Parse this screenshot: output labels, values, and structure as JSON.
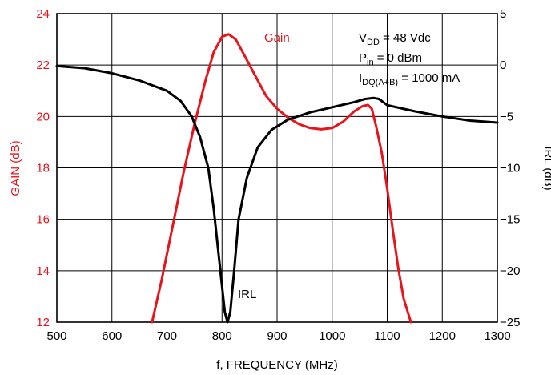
{
  "chart_data": {
    "type": "line",
    "title": "",
    "xlabel": "f, FREQUENCY (MHz)",
    "ylabel_left": "GAIN (dB)",
    "ylabel_right": "IRL (dB)",
    "xlim": [
      500,
      1300
    ],
    "ylim_left": [
      12,
      24
    ],
    "ylim_right": [
      -25,
      5
    ],
    "x_ticks": [
      500,
      600,
      700,
      800,
      900,
      1000,
      1100,
      1200,
      1300
    ],
    "y_ticks_left": [
      12,
      14,
      16,
      18,
      20,
      22,
      24
    ],
    "y_ticks_right": [
      -25,
      -20,
      -15,
      -10,
      -5,
      0,
      5
    ],
    "grid": true,
    "colors": {
      "gain": "#e8141c",
      "irl": "#000000",
      "grid": "#000000"
    },
    "series": [
      {
        "name": "Gain",
        "axis": "left",
        "color": "#e8141c",
        "points": [
          [
            673,
            12.0
          ],
          [
            690,
            13.6
          ],
          [
            710,
            15.7
          ],
          [
            730,
            17.8
          ],
          [
            750,
            19.7
          ],
          [
            770,
            21.4
          ],
          [
            785,
            22.5
          ],
          [
            800,
            23.1
          ],
          [
            812,
            23.2
          ],
          [
            825,
            23.0
          ],
          [
            840,
            22.4
          ],
          [
            860,
            21.6
          ],
          [
            880,
            20.8
          ],
          [
            900,
            20.3
          ],
          [
            920,
            19.95
          ],
          [
            940,
            19.7
          ],
          [
            960,
            19.55
          ],
          [
            980,
            19.5
          ],
          [
            1000,
            19.55
          ],
          [
            1020,
            19.8
          ],
          [
            1040,
            20.2
          ],
          [
            1055,
            20.4
          ],
          [
            1065,
            20.45
          ],
          [
            1072,
            20.3
          ],
          [
            1080,
            19.6
          ],
          [
            1090,
            18.6
          ],
          [
            1100,
            17.2
          ],
          [
            1110,
            15.6
          ],
          [
            1120,
            14.1
          ],
          [
            1130,
            12.9
          ],
          [
            1143,
            12.0
          ]
        ]
      },
      {
        "name": "IRL",
        "axis": "right",
        "color": "#000000",
        "points": [
          [
            500,
            -0.1
          ],
          [
            550,
            -0.3
          ],
          [
            600,
            -0.8
          ],
          [
            650,
            -1.5
          ],
          [
            700,
            -2.5
          ],
          [
            725,
            -3.5
          ],
          [
            745,
            -5.0
          ],
          [
            760,
            -7.0
          ],
          [
            775,
            -10.0
          ],
          [
            785,
            -14.0
          ],
          [
            795,
            -19.0
          ],
          [
            805,
            -24.0
          ],
          [
            810,
            -25.0
          ],
          [
            815,
            -24.0
          ],
          [
            822,
            -20.0
          ],
          [
            830,
            -15.0
          ],
          [
            845,
            -11.0
          ],
          [
            865,
            -8.0
          ],
          [
            890,
            -6.3
          ],
          [
            920,
            -5.3
          ],
          [
            960,
            -4.6
          ],
          [
            1000,
            -4.1
          ],
          [
            1040,
            -3.6
          ],
          [
            1060,
            -3.3
          ],
          [
            1075,
            -3.2
          ],
          [
            1085,
            -3.3
          ],
          [
            1100,
            -3.9
          ],
          [
            1150,
            -4.5
          ],
          [
            1200,
            -5.0
          ],
          [
            1250,
            -5.4
          ],
          [
            1300,
            -5.6
          ]
        ]
      }
    ],
    "labels": {
      "gain_label": "Gain",
      "irl_label": "IRL"
    },
    "annotations": {
      "vdd_main": "V",
      "vdd_sub": "DD",
      "vdd_rest": " = 48 Vdc",
      "pin_main": "P",
      "pin_sub": "in",
      "pin_rest": " = 0 dBm",
      "idq_main": "I",
      "idq_sub": "DQ(A+B)",
      "idq_rest": " = 1000 mA"
    }
  }
}
